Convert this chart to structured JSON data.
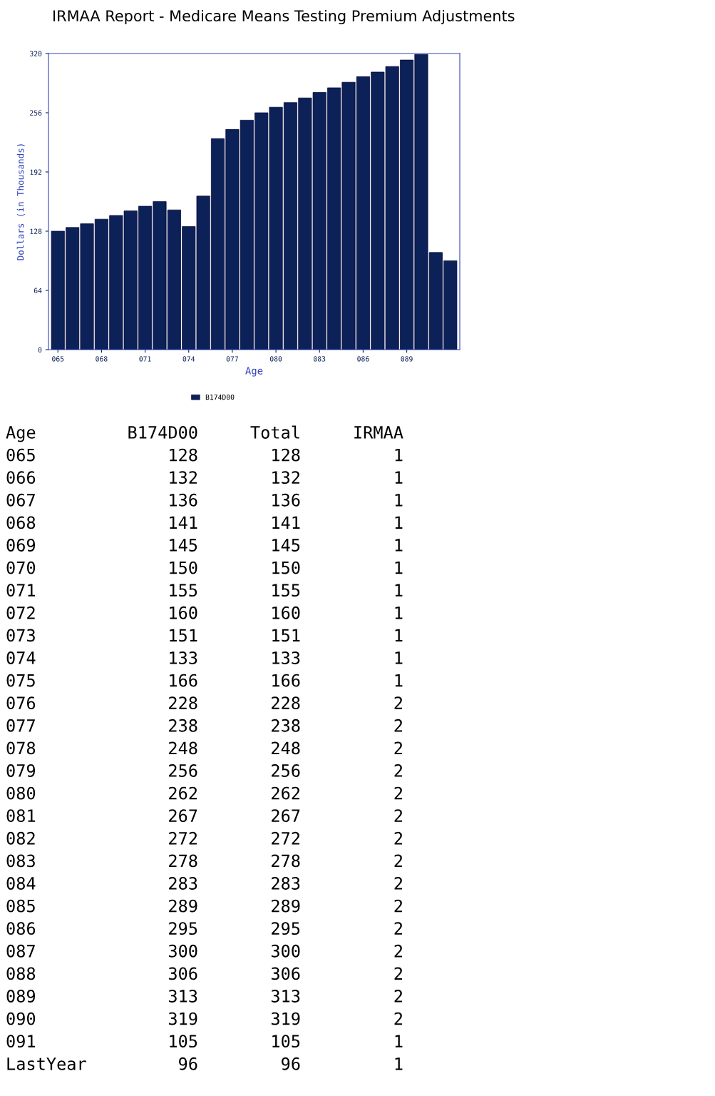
{
  "chart_data": {
    "type": "bar",
    "title": "IRMAA Report - Medicare Means Testing Premium Adjustments",
    "xlabel": "Age",
    "ylabel": "Dollars (in Thousands)",
    "categories": [
      "065",
      null,
      null,
      "068",
      null,
      null,
      "071",
      null,
      null,
      "074",
      null,
      null,
      "077",
      null,
      null,
      "080",
      null,
      null,
      "083",
      null,
      null,
      "086",
      null,
      null,
      "089",
      null,
      null,
      null
    ],
    "series": [
      {
        "name": "B174D00",
        "color": "#0b2157",
        "values": [
          128,
          132,
          136,
          141,
          145,
          150,
          155,
          160,
          151,
          133,
          166,
          228,
          238,
          248,
          256,
          262,
          267,
          272,
          278,
          283,
          289,
          295,
          300,
          306,
          313,
          319,
          105,
          96
        ]
      }
    ],
    "ylim": [
      0,
      320
    ],
    "yticks": [
      0,
      64,
      128,
      192,
      256,
      320
    ],
    "grid": false,
    "legend": "bottom",
    "annotations": [
      "Age",
      "B174D00",
      "Total",
      "IRMAA",
      "065",
      "128",
      "128",
      "1",
      "066",
      "132",
      "132",
      "1",
      "067",
      "136",
      "136",
      "1",
      "068",
      "141",
      "141",
      "1",
      "069",
      "145",
      "145",
      "1",
      "070",
      "150",
      "150",
      "1",
      "071",
      "155",
      "155",
      "1",
      "072",
      "160",
      "160",
      "1",
      "073",
      "151",
      "151",
      "1",
      "074",
      "133",
      "133",
      "1",
      "075",
      "166",
      "166",
      "1",
      "076",
      "228",
      "228",
      "2",
      "077",
      "238",
      "238",
      "2",
      "078",
      "248",
      "248",
      "2",
      "079",
      "256",
      "256",
      "2",
      "080",
      "262",
      "262",
      "2",
      "081",
      "267",
      "267",
      "2",
      "082",
      "272",
      "272",
      "2",
      "083",
      "278",
      "278",
      "2",
      "084",
      "283",
      "283",
      "2",
      "085",
      "289",
      "289",
      "2",
      "086",
      "295",
      "295",
      "2",
      "087",
      "300",
      "300",
      "2",
      "088",
      "306",
      "306",
      "2",
      "089",
      "313",
      "313",
      "2",
      "090",
      "319",
      "319",
      "2",
      "091",
      "105",
      "105",
      "1",
      "LastYear",
      "96",
      "96",
      "1"
    ]
  }
}
